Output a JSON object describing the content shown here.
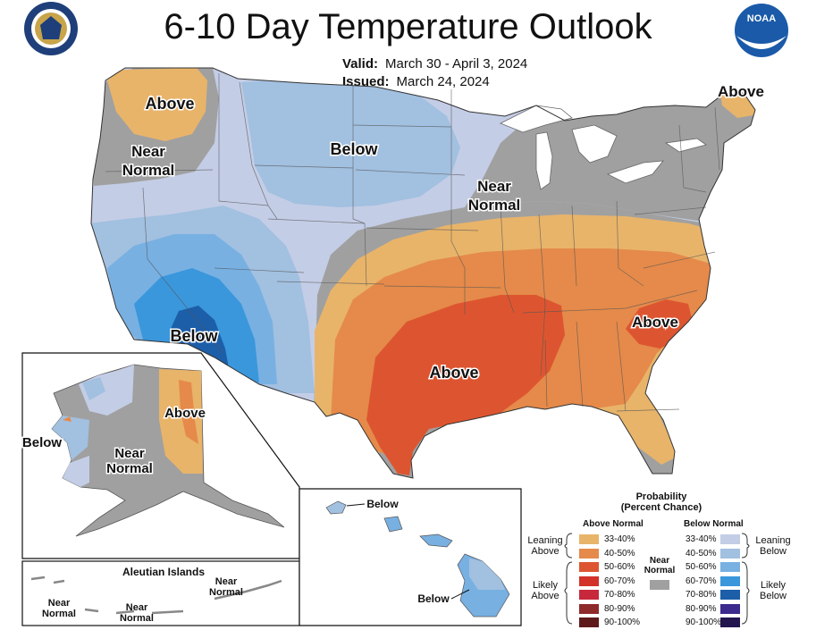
{
  "header": {
    "title": "6-10 Day Temperature Outlook",
    "valid_label": "Valid:",
    "valid_value": "March 30 - April 3, 2024",
    "issued_label": "Issued:",
    "issued_value": "March 24, 2024"
  },
  "logos": {
    "commerce": "department-of-commerce-seal",
    "noaa_text": "NOAA"
  },
  "map_labels": {
    "nw_above": "Above",
    "nw_near_1": "Near",
    "nw_near_2": "Normal",
    "plains_below": "Below",
    "ne_above": "Above",
    "gl_near_1": "Near",
    "gl_near_2": "Normal",
    "sw_below": "Below",
    "south_above": "Above",
    "se_above": "Above",
    "ak_above": "Above",
    "ak_near_1": "Near",
    "ak_near_2": "Normal",
    "ak_below": "Below",
    "aleutian_title": "Aleutian Islands",
    "aleut_near_a1": "Near",
    "aleut_near_a2": "Normal",
    "aleut_near_b1": "Near",
    "aleut_near_b2": "Normal",
    "aleut_near_c1": "Near",
    "aleut_near_c2": "Normal",
    "hi_below_1": "Below",
    "hi_below_2": "Below"
  },
  "legend": {
    "title_1": "Probability",
    "title_2": "(Percent Chance)",
    "above_header": "Above Normal",
    "below_header": "Below Normal",
    "leaning_above_1": "Leaning",
    "leaning_above_2": "Above",
    "likely_above_1": "Likely",
    "likely_above_2": "Above",
    "leaning_below_1": "Leaning",
    "leaning_below_2": "Below",
    "likely_below_1": "Likely",
    "likely_below_2": "Below",
    "near_normal_1": "Near",
    "near_normal_2": "Normal",
    "near_normal_color": "#a0a0a0",
    "above": [
      {
        "label": "33-40%",
        "color": "#e8b46a"
      },
      {
        "label": "40-50%",
        "color": "#e58a4a"
      },
      {
        "label": "50-60%",
        "color": "#dd5530"
      },
      {
        "label": "60-70%",
        "color": "#d23228"
      },
      {
        "label": "70-80%",
        "color": "#c8283c"
      },
      {
        "label": "80-90%",
        "color": "#8f2a2a"
      },
      {
        "label": "90-100%",
        "color": "#5e1a1a"
      }
    ],
    "below": [
      {
        "label": "33-40%",
        "color": "#c4cde6"
      },
      {
        "label": "40-50%",
        "color": "#a2c0e0"
      },
      {
        "label": "50-60%",
        "color": "#78b0e2"
      },
      {
        "label": "60-70%",
        "color": "#3a97dc"
      },
      {
        "label": "70-80%",
        "color": "#1c5ea8"
      },
      {
        "label": "80-90%",
        "color": "#3c2a8c"
      },
      {
        "label": "90-100%",
        "color": "#23164f"
      }
    ]
  }
}
